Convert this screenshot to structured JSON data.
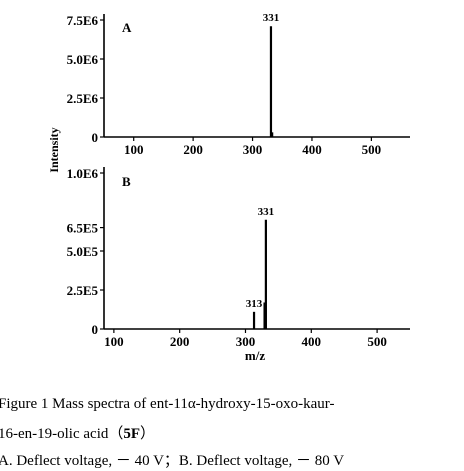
{
  "chart_data": [
    {
      "type": "bar",
      "panel": "A",
      "xlim": [
        50,
        565
      ],
      "ylim": [
        0,
        7500000
      ],
      "xticks": [
        100,
        200,
        300,
        400,
        500
      ],
      "yticks": [
        {
          "value": 0,
          "label": "0"
        },
        {
          "value": 2500000,
          "label": "2.5E6"
        },
        {
          "value": 5000000,
          "label": "5.0E6"
        },
        {
          "value": 7500000,
          "label": "7.5E6"
        }
      ],
      "ylabel": "Intensity",
      "peaks": [
        {
          "mz": 331,
          "intensity": 7100000,
          "label": "331"
        },
        {
          "mz": 333,
          "intensity": 300000,
          "label": ""
        }
      ]
    },
    {
      "type": "bar",
      "panel": "B",
      "xlim": [
        85,
        550
      ],
      "ylim": [
        0,
        1000000
      ],
      "xticks": [
        100,
        200,
        300,
        400,
        500
      ],
      "yticks": [
        {
          "value": 0,
          "label": "0"
        },
        {
          "value": 250000,
          "label": "2.5E5"
        },
        {
          "value": 500000,
          "label": "5.0E5"
        },
        {
          "value": 650000,
          "label": "6.5E5"
        },
        {
          "value": 1000000,
          "label": "1.0E6"
        }
      ],
      "xlabel": "m/z",
      "peaks": [
        {
          "mz": 313,
          "intensity": 110000,
          "label": "313"
        },
        {
          "mz": 329,
          "intensity": 170000,
          "label": ""
        },
        {
          "mz": 331,
          "intensity": 700000,
          "label": "331"
        }
      ]
    }
  ],
  "caption": {
    "line1": "Figure 1    Mass spectra of ent-11α-hydroxy-15-oxo-kaur-",
    "line2_text": "16-en-19-olic acid（",
    "line2_bold": "5F",
    "line2_end": "）",
    "line3": "A. Deflect voltage, － 40 V；B. Deflect voltage, － 80 V"
  }
}
